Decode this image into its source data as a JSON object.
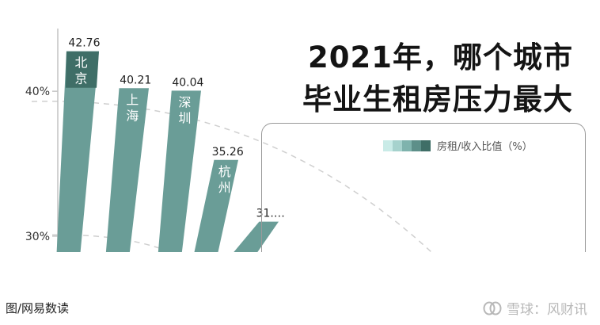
{
  "chart_data": {
    "type": "bar",
    "title": "2021年，哪个城市毕业生租房压力最大",
    "title_lines": [
      "2021年，哪个城市",
      "毕业生租房压力最大"
    ],
    "categories": [
      "北京",
      "上海",
      "深圳",
      "杭州",
      ""
    ],
    "values": [
      42.76,
      40.21,
      40.04,
      35.26,
      31
    ],
    "data_labels": [
      "42.76",
      "40.21",
      "40.04",
      "35.26",
      "31.…"
    ],
    "y_ticks": [
      {
        "value": 40,
        "label": "40%"
      },
      {
        "value": 30,
        "label": "30%"
      }
    ],
    "ylim": [
      28.9,
      46.3
    ],
    "legend": {
      "label": "房租/收入比值（%）",
      "placement": "top-right"
    },
    "colors": {
      "bar": "#6a9d97",
      "bar_top_first": "#3f6e67",
      "axis": "#c4c4c4",
      "guide": "#cfcfcf",
      "legend_gradient": [
        "#c9ebe7",
        "#a6d2cd",
        "#7fb3ad",
        "#5d8f89",
        "#3f6e67"
      ]
    }
  },
  "footer": {
    "source": "图/网易数读"
  },
  "watermark": {
    "text": "雪球：风财讯"
  }
}
